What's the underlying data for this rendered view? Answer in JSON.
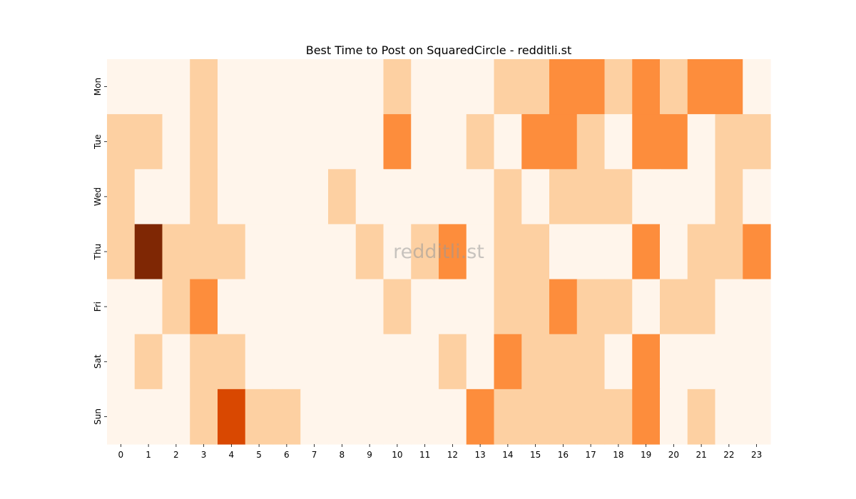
{
  "chart_data": {
    "type": "heatmap",
    "title": "Best Time to Post on SquaredCircle - redditli.st",
    "watermark": "redditli.st",
    "xlabel": "",
    "ylabel": "",
    "x_categories": [
      "0",
      "1",
      "2",
      "3",
      "4",
      "5",
      "6",
      "7",
      "8",
      "9",
      "10",
      "11",
      "12",
      "13",
      "14",
      "15",
      "16",
      "17",
      "18",
      "19",
      "20",
      "21",
      "22",
      "23"
    ],
    "y_categories": [
      "Mon",
      "Tue",
      "Wed",
      "Thu",
      "Fri",
      "Sat",
      "Sun"
    ],
    "values": [
      [
        0,
        0,
        0,
        1,
        0,
        0,
        0,
        0,
        0,
        0,
        1,
        0,
        0,
        0,
        1,
        1,
        2,
        2,
        1,
        2,
        1,
        2,
        2,
        0
      ],
      [
        1,
        1,
        0,
        1,
        0,
        0,
        0,
        0,
        0,
        0,
        2,
        0,
        0,
        1,
        0,
        2,
        2,
        1,
        0,
        2,
        2,
        0,
        1,
        1
      ],
      [
        1,
        0,
        0,
        1,
        0,
        0,
        0,
        0,
        1,
        0,
        0,
        0,
        0,
        0,
        1,
        0,
        1,
        1,
        1,
        0,
        0,
        0,
        1,
        0
      ],
      [
        1,
        4,
        1,
        1,
        1,
        0,
        0,
        0,
        0,
        1,
        0,
        1,
        2,
        0,
        1,
        1,
        0,
        0,
        0,
        2,
        0,
        1,
        1,
        2
      ],
      [
        0,
        0,
        1,
        2,
        0,
        0,
        0,
        0,
        0,
        0,
        1,
        0,
        0,
        0,
        1,
        1,
        2,
        1,
        1,
        0,
        1,
        1,
        0,
        0
      ],
      [
        0,
        1,
        0,
        1,
        1,
        0,
        0,
        0,
        0,
        0,
        0,
        0,
        1,
        0,
        2,
        1,
        1,
        1,
        0,
        2,
        0,
        0,
        0,
        0
      ],
      [
        0,
        0,
        0,
        1,
        3,
        1,
        1,
        0,
        0,
        0,
        0,
        0,
        0,
        2,
        1,
        1,
        1,
        1,
        1,
        2,
        0,
        1,
        0,
        0
      ]
    ],
    "value_range": [
      0,
      4
    ],
    "colormap": [
      "#fff5eb",
      "#fdd0a2",
      "#fd8d3c",
      "#d94801",
      "#7f2704"
    ],
    "legend": "none",
    "grid": false
  }
}
